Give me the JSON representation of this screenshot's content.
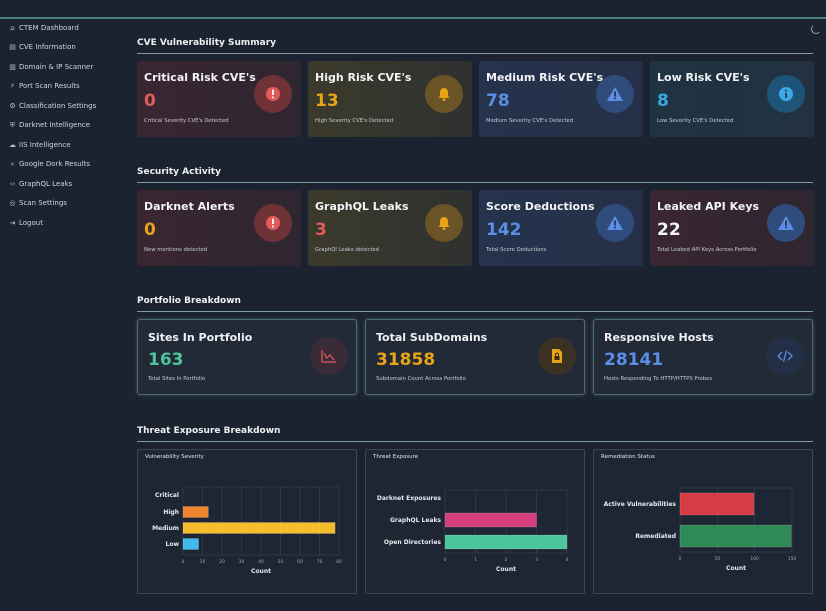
{
  "sidebar": {
    "items": [
      {
        "icon": "home-icon",
        "glyph": "⌂",
        "label": "CTEM Dashboard"
      },
      {
        "icon": "document-icon",
        "glyph": "▤",
        "label": "CVE Information"
      },
      {
        "icon": "server-icon",
        "glyph": "▥",
        "label": "Domain & IP Scanner"
      },
      {
        "icon": "plug-icon",
        "glyph": "⚡",
        "label": "Port Scan Results"
      },
      {
        "icon": "gear-icon",
        "glyph": "⚙",
        "label": "Classification Settings"
      },
      {
        "icon": "shield-icon",
        "glyph": "⛨",
        "label": "Darknet Intelligence"
      },
      {
        "icon": "cloud-icon",
        "glyph": "☁",
        "label": "IIS Intelligence"
      },
      {
        "icon": "search-icon",
        "glyph": "⌕",
        "label": "Google Dork Results"
      },
      {
        "icon": "code-icon",
        "glyph": "‹›",
        "label": "GraphQL Leaks"
      },
      {
        "icon": "settings-icon",
        "glyph": "◎",
        "label": "Scan Settings"
      },
      {
        "icon": "logout-icon",
        "glyph": "⇥",
        "label": "Logout"
      }
    ]
  },
  "sections": {
    "cve": "CVE Vulnerability Summary",
    "activity": "Security Activity",
    "portfolio": "Portfolio Breakdown",
    "threat": "Threat Exposure Breakdown"
  },
  "cve_cards": [
    {
      "title": "Critical Risk CVE's",
      "value": "0",
      "sub": "Critical Severity CVE's Detected",
      "color": "#e25a5a",
      "icon": "alert-circle-icon"
    },
    {
      "title": "High Risk CVE's",
      "value": "13",
      "sub": "High Severity CVE's Detected",
      "color": "#e8a317",
      "icon": "bell-icon"
    },
    {
      "title": "Medium Risk CVE's",
      "value": "78",
      "sub": "Medium Severity CVE's Detected",
      "color": "#5b8fe6",
      "icon": "warning-triangle-icon"
    },
    {
      "title": "Low Risk CVE's",
      "value": "8",
      "sub": "Low Severity CVE's Detected",
      "color": "#3aa9e6",
      "icon": "info-icon"
    }
  ],
  "activity_cards": [
    {
      "title": "Darknet Alerts",
      "value": "0",
      "sub": "New mentions detected",
      "color": "#e8a317",
      "icon": "alert-circle-icon"
    },
    {
      "title": "GraphQL Leaks",
      "value": "3",
      "sub": "GraphQl Leaks detected",
      "color": "#e25a5a",
      "icon": "bell-icon"
    },
    {
      "title": "Score Deductions",
      "value": "142",
      "sub": "Total Score Deductions",
      "color": "#5b8fe6",
      "icon": "warning-triangle-icon"
    },
    {
      "title": "Leaked API Keys",
      "value": "22",
      "sub": "Total Leaked API Keys Across Portfolio",
      "color": "#f2f4f7",
      "icon": "warning-triangle-icon"
    }
  ],
  "portfolio_cards": [
    {
      "title": "Sites In Portfolio",
      "value": "163",
      "sub": "Total Sites In Portfolio",
      "color": "#4cc59a",
      "icon": "line-chart-icon"
    },
    {
      "title": "Total SubDomains",
      "value": "31858",
      "sub": "Subdomain Count Across Portfolio",
      "color": "#e8a317",
      "icon": "lock-file-icon"
    },
    {
      "title": "Responsive Hosts",
      "value": "28141",
      "sub": "Hosts Responding To HTTP/HTTPS Probes",
      "color": "#5b8fe6",
      "icon": "code-icon"
    }
  ],
  "chart_data": [
    {
      "type": "bar",
      "orientation": "horizontal",
      "title": "Vulnerability Severity",
      "categories": [
        "Critical",
        "High",
        "Medium",
        "Low"
      ],
      "values": [
        0,
        13,
        78,
        8
      ],
      "colors": [
        "#e25a5a",
        "#f0852f",
        "#f4bd2c",
        "#3fbbe8"
      ],
      "xlabel": "Count",
      "xlim": [
        0,
        80
      ],
      "xticks": [
        0,
        10,
        20,
        30,
        40,
        50,
        60,
        70,
        80
      ]
    },
    {
      "type": "bar",
      "orientation": "horizontal",
      "title": "Threat Exposure",
      "categories": [
        "Darknet Exposures",
        "GraphQL Leaks",
        "Open Directories"
      ],
      "values": [
        0,
        3,
        4
      ],
      "colors": [
        "#5b8fe6",
        "#d63e7d",
        "#4cc59a"
      ],
      "xlabel": "Count",
      "xlim": [
        0,
        4
      ],
      "xticks": [
        0,
        1,
        2,
        3,
        4
      ]
    },
    {
      "type": "bar",
      "orientation": "horizontal",
      "title": "Remediation Status",
      "categories": [
        "Active Vulnerabilities",
        "Remediated"
      ],
      "values": [
        99,
        149
      ],
      "colors": [
        "#d63c45",
        "#2f8a57"
      ],
      "xlabel": "Count",
      "xlim": [
        0,
        150
      ],
      "xticks": [
        0,
        50,
        100,
        150
      ]
    }
  ]
}
